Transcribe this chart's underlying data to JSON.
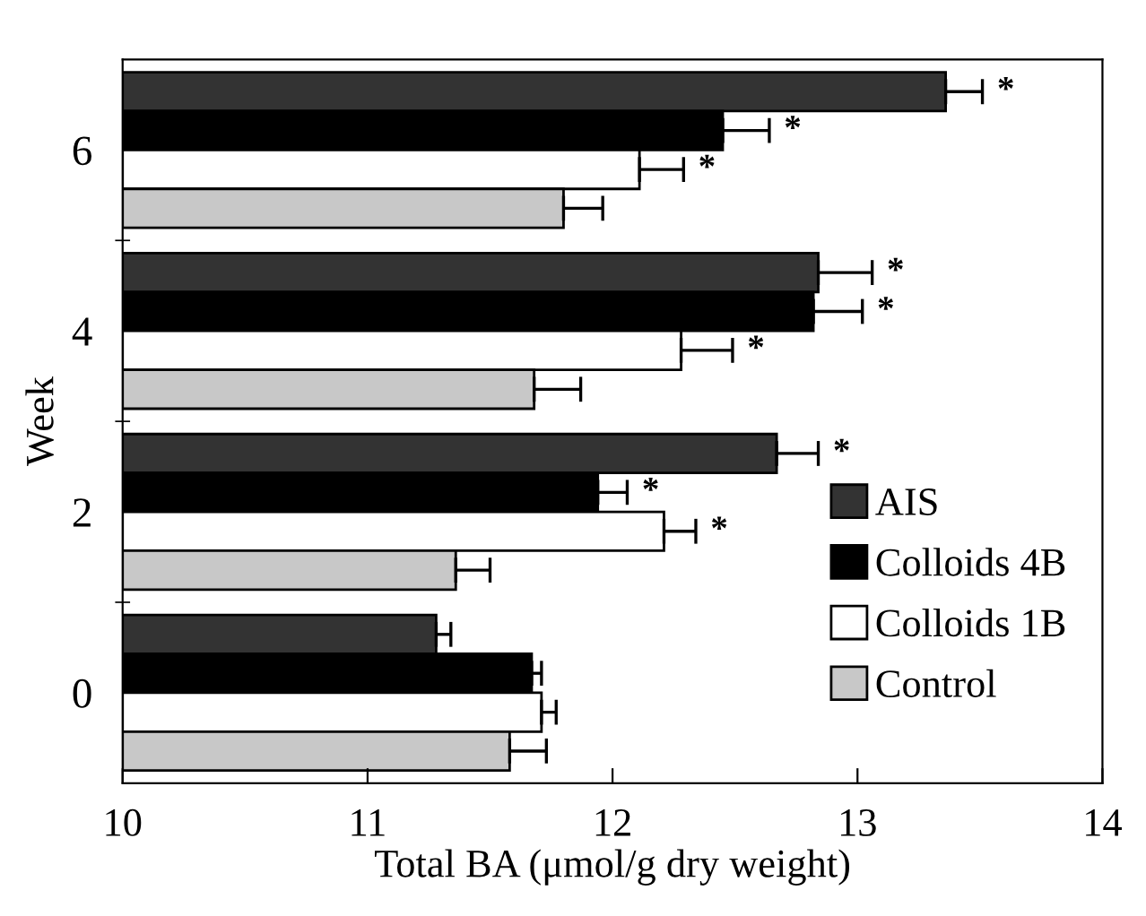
{
  "chart_data": {
    "type": "bar",
    "orientation": "horizontal",
    "xlabel": "Total BA (μmol/g dry weight)",
    "ylabel": "Week",
    "categories": [
      "6",
      "4",
      "2",
      "0"
    ],
    "series": [
      {
        "name": "AIS",
        "color": "#333333",
        "values": [
          13.36,
          12.84,
          12.67,
          11.28
        ],
        "errors": [
          0.15,
          0.22,
          0.17,
          0.06
        ],
        "value_labels": [
          "*",
          "*",
          "*",
          null
        ]
      },
      {
        "name": "Colloids 4B",
        "color": "#000000",
        "values": [
          12.45,
          12.82,
          11.94,
          11.67
        ],
        "errors": [
          0.19,
          0.2,
          0.12,
          0.04
        ],
        "value_labels": [
          "*",
          "*",
          "*",
          null
        ]
      },
      {
        "name": "Colloids 1B",
        "color": "#ffffff",
        "values": [
          12.11,
          12.28,
          12.21,
          11.71
        ],
        "errors": [
          0.18,
          0.21,
          0.13,
          0.06
        ],
        "value_labels": [
          "*",
          "*",
          "*",
          null
        ]
      },
      {
        "name": "Control",
        "color": "#c8c8c8",
        "values": [
          11.8,
          11.68,
          11.36,
          11.58
        ],
        "errors": [
          0.16,
          0.19,
          0.14,
          0.15
        ]
      }
    ],
    "xlim": [
      10,
      14
    ],
    "xticks": [
      10,
      11,
      12,
      13,
      14
    ],
    "grid": false,
    "legend": "right"
  }
}
